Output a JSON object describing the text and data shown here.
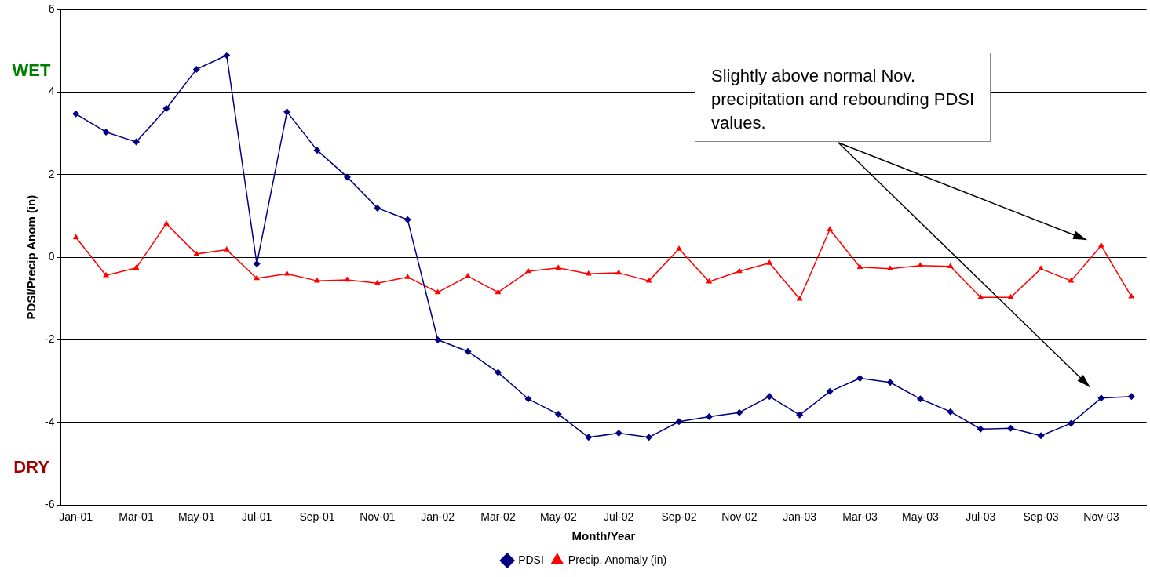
{
  "chart_data": {
    "type": "line",
    "xlabel": "Month/Year",
    "ylabel": "PDSI/Precip Anom (in)",
    "categories": [
      "Jan-01",
      null,
      "Mar-01",
      null,
      "May-01",
      null,
      "Jul-01",
      null,
      "Sep-01",
      null,
      "Nov-01",
      null,
      "Jan-02",
      null,
      "Mar-02",
      null,
      "May-02",
      null,
      "Jul-02",
      null,
      "Sep-02",
      null,
      "Nov-02",
      null,
      "Jan-03",
      null,
      "Mar-03",
      null,
      "May-03",
      null,
      "Jul-03",
      null,
      "Sep-03",
      null,
      "Nov-03",
      null
    ],
    "series": [
      {
        "name": "PDSI",
        "color": "#000080",
        "marker": "diamond",
        "values": [
          3.47,
          3.03,
          2.79,
          3.6,
          4.55,
          4.89,
          -0.16,
          3.52,
          2.59,
          1.94,
          1.19,
          0.91,
          -2.0,
          -2.28,
          -2.79,
          -3.43,
          -3.8,
          -4.36,
          -4.26,
          -4.36,
          -3.98,
          -3.86,
          -3.76,
          -3.37,
          -3.82,
          -3.25,
          -2.93,
          -3.03,
          -3.43,
          -3.74,
          -4.16,
          -4.14,
          -4.32,
          -4.02,
          -3.41,
          -3.37
        ]
      },
      {
        "name": "Precip. Anomaly (in)",
        "color": "#ff0000",
        "marker": "triangle",
        "values": [
          0.48,
          -0.44,
          -0.26,
          0.81,
          0.08,
          0.18,
          -0.51,
          -0.4,
          -0.57,
          -0.55,
          -0.63,
          -0.48,
          -0.85,
          -0.46,
          -0.85,
          -0.34,
          -0.26,
          -0.4,
          -0.38,
          -0.57,
          0.2,
          -0.59,
          -0.34,
          -0.14,
          -1.01,
          0.67,
          -0.24,
          -0.28,
          -0.2,
          -0.22,
          -0.97,
          -0.97,
          -0.28,
          -0.57,
          0.28,
          -0.95
        ]
      }
    ],
    "ylim": [
      -6,
      6
    ],
    "yticks": [
      -6,
      -4,
      -2,
      0,
      2,
      4,
      6
    ],
    "grid": "y",
    "legend": "bottom",
    "line_style": "solid",
    "annotations": [
      "WET",
      "DRY",
      "Slightly above normal Nov. precipitation and rebounding PDSI values."
    ]
  }
}
